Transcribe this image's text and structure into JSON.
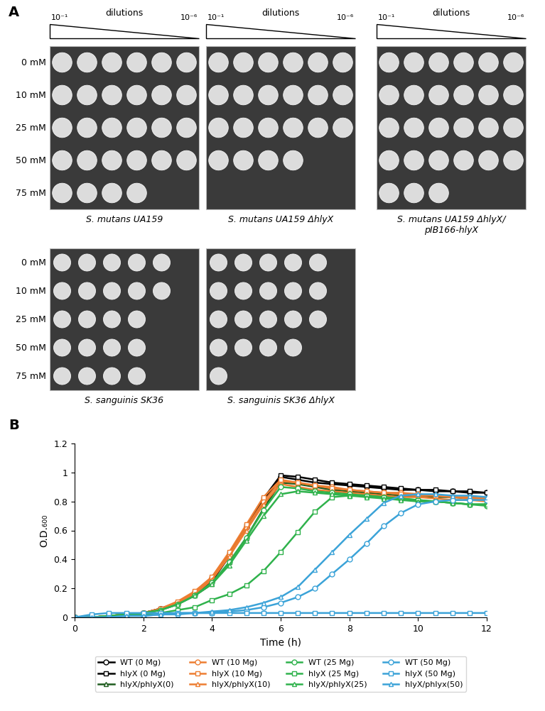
{
  "panel_a": {
    "label": "A",
    "dilution_header": {
      "title": "dilutions",
      "start": "10⁻¹",
      "end": "10⁻⁶"
    },
    "concentrations": [
      "0 mM",
      "10 mM",
      "25 mM",
      "50 mM",
      "75 mM"
    ],
    "rows": [
      [
        {
          "name": "S. mutans UA159",
          "growth": [
            6,
            6,
            6,
            6,
            4
          ]
        },
        {
          "name": "S. mutans UA159 ΔhlyX",
          "growth": [
            6,
            6,
            6,
            4,
            0
          ]
        },
        {
          "name": "S. mutans UA159 ΔhlyX/\npIB166-hlyX",
          "growth": [
            6,
            6,
            6,
            6,
            3
          ]
        }
      ],
      [
        {
          "name": "S. sanguinis SK36",
          "growth": [
            5,
            5,
            4,
            4,
            4
          ]
        },
        {
          "name": "S. sanguinis SK36 ΔhlyX",
          "growth": [
            5,
            5,
            5,
            4,
            1
          ]
        }
      ]
    ]
  },
  "chart_data": {
    "type": "line",
    "label": "B",
    "x_label": "Time (h)",
    "y_label": "O.D.₆₀₀",
    "x": [
      0,
      0.5,
      1,
      1.5,
      2,
      2.5,
      3,
      3.5,
      4,
      4.5,
      5,
      5.5,
      6,
      6.5,
      7,
      7.5,
      8,
      8.5,
      9,
      9.5,
      10,
      10.5,
      11,
      11.5,
      12
    ],
    "xlim": [
      0,
      12
    ],
    "xticks": [
      0,
      2,
      4,
      6,
      8,
      10,
      12
    ],
    "ylim": [
      0,
      1.2
    ],
    "yticks": [
      0,
      0.2,
      0.4,
      0.6,
      0.8,
      1,
      1.2
    ],
    "legend": "bottom",
    "series": [
      {
        "name": "WT (0 Mg)",
        "color": "#000000",
        "marker": "circle",
        "line_style": "solid",
        "values": [
          0,
          0,
          0.01,
          0.02,
          0.03,
          0.06,
          0.1,
          0.16,
          0.25,
          0.42,
          0.62,
          0.8,
          0.97,
          0.95,
          0.93,
          0.92,
          0.91,
          0.9,
          0.89,
          0.88,
          0.88,
          0.87,
          0.87,
          0.86,
          0.86
        ]
      },
      {
        "name": "hlyX (0 Mg)",
        "color": "#000000",
        "marker": "square",
        "line_style": "solid",
        "values": [
          0,
          0,
          0.01,
          0.02,
          0.03,
          0.06,
          0.1,
          0.17,
          0.27,
          0.44,
          0.63,
          0.82,
          0.98,
          0.97,
          0.95,
          0.93,
          0.92,
          0.91,
          0.9,
          0.89,
          0.88,
          0.88,
          0.87,
          0.87,
          0.86
        ]
      },
      {
        "name": "hlyX/phlyX(0)",
        "color": "#1e5c1e",
        "marker": "triangle",
        "line_style": "solid",
        "values": [
          0,
          0,
          0.01,
          0.02,
          0.03,
          0.05,
          0.09,
          0.15,
          0.23,
          0.38,
          0.55,
          0.75,
          0.93,
          0.92,
          0.9,
          0.88,
          0.87,
          0.86,
          0.85,
          0.84,
          0.84,
          0.83,
          0.83,
          0.82,
          0.82
        ]
      },
      {
        "name": "WT (10 Mg)",
        "color": "#ed7d31",
        "marker": "circle",
        "line_style": "solid",
        "values": [
          0,
          0,
          0.01,
          0.02,
          0.03,
          0.06,
          0.1,
          0.17,
          0.27,
          0.43,
          0.62,
          0.8,
          0.94,
          0.93,
          0.91,
          0.9,
          0.88,
          0.87,
          0.86,
          0.86,
          0.85,
          0.84,
          0.83,
          0.83,
          0.82
        ]
      },
      {
        "name": "hlyX (10 Mg)",
        "color": "#ed7d31",
        "marker": "square",
        "line_style": "solid",
        "values": [
          0,
          0,
          0.01,
          0.02,
          0.03,
          0.06,
          0.11,
          0.18,
          0.28,
          0.45,
          0.64,
          0.83,
          0.95,
          0.93,
          0.91,
          0.89,
          0.88,
          0.87,
          0.86,
          0.85,
          0.84,
          0.84,
          0.83,
          0.82,
          0.82
        ]
      },
      {
        "name": "hlyX/phlyX(10)",
        "color": "#ed7d31",
        "marker": "triangle",
        "line_style": "solid",
        "values": [
          0,
          0,
          0.01,
          0.02,
          0.03,
          0.05,
          0.1,
          0.16,
          0.26,
          0.42,
          0.6,
          0.78,
          0.92,
          0.9,
          0.88,
          0.87,
          0.86,
          0.85,
          0.84,
          0.83,
          0.83,
          0.82,
          0.81,
          0.81,
          0.8
        ]
      },
      {
        "name": "WT (25 Mg)",
        "color": "#2fb24c",
        "marker": "circle",
        "line_style": "solid",
        "values": [
          0,
          0,
          0.01,
          0.02,
          0.03,
          0.05,
          0.09,
          0.15,
          0.24,
          0.38,
          0.55,
          0.74,
          0.9,
          0.89,
          0.87,
          0.86,
          0.85,
          0.84,
          0.83,
          0.82,
          0.81,
          0.8,
          0.79,
          0.78,
          0.77
        ]
      },
      {
        "name": "hlyX (25 Mg)",
        "color": "#2fb24c",
        "marker": "square",
        "line_style": "solid",
        "values": [
          0,
          0,
          0.01,
          0.01,
          0.02,
          0.03,
          0.05,
          0.07,
          0.12,
          0.16,
          0.22,
          0.32,
          0.45,
          0.59,
          0.73,
          0.83,
          0.84,
          0.84,
          0.83,
          0.82,
          0.81,
          0.8,
          0.79,
          0.78,
          0.78
        ]
      },
      {
        "name": "hlyX/phlyX(25)",
        "color": "#2fb24c",
        "marker": "triangle",
        "line_style": "solid",
        "values": [
          0,
          0,
          0.01,
          0.02,
          0.03,
          0.05,
          0.09,
          0.15,
          0.23,
          0.36,
          0.53,
          0.7,
          0.85,
          0.87,
          0.86,
          0.85,
          0.84,
          0.83,
          0.82,
          0.81,
          0.8,
          0.8,
          0.79,
          0.78,
          0.78
        ]
      },
      {
        "name": "WT (50 Mg)",
        "color": "#3ba3d8",
        "marker": "circle",
        "line_style": "solid",
        "values": [
          0,
          0,
          0,
          0.01,
          0.01,
          0.02,
          0.02,
          0.03,
          0.03,
          0.04,
          0.05,
          0.07,
          0.1,
          0.14,
          0.2,
          0.3,
          0.4,
          0.51,
          0.63,
          0.72,
          0.78,
          0.8,
          0.81,
          0.81,
          0.81
        ]
      },
      {
        "name": "hlyX (50 Mg)",
        "color": "#3ba3d8",
        "marker": "square",
        "line_style": "solid",
        "values": [
          0,
          0.02,
          0.03,
          0.03,
          0.03,
          0.03,
          0.03,
          0.03,
          0.03,
          0.03,
          0.03,
          0.03,
          0.03,
          0.03,
          0.03,
          0.03,
          0.03,
          0.03,
          0.03,
          0.03,
          0.03,
          0.03,
          0.03,
          0.03,
          0.03
        ]
      },
      {
        "name": "hlyX/phlyx(50)",
        "color": "#3ba3d8",
        "marker": "triangle",
        "line_style": "solid",
        "values": [
          0,
          0,
          0,
          0.01,
          0.01,
          0.02,
          0.03,
          0.03,
          0.04,
          0.05,
          0.07,
          0.1,
          0.14,
          0.21,
          0.33,
          0.45,
          0.57,
          0.68,
          0.79,
          0.84,
          0.85,
          0.85,
          0.84,
          0.84,
          0.83
        ]
      }
    ]
  }
}
